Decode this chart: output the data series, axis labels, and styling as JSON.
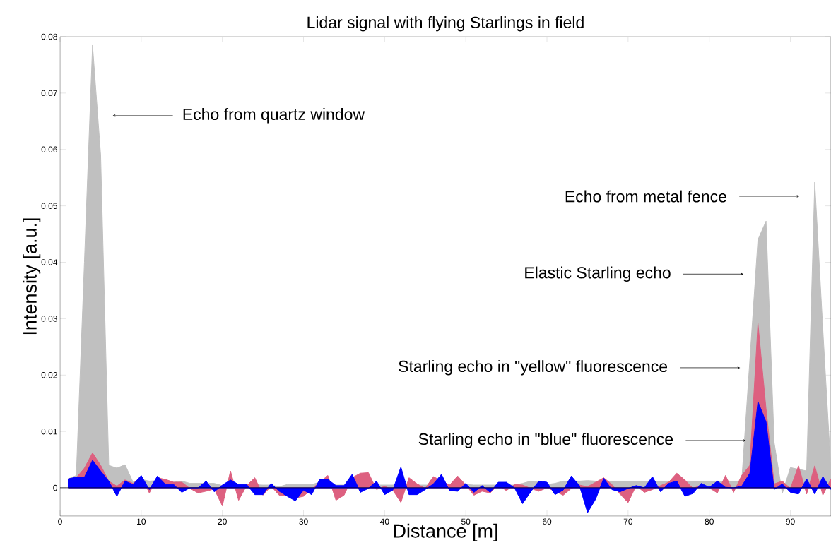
{
  "chart_data": {
    "type": "area",
    "title": "Lidar signal with flying Starlings in field",
    "xlabel": "Distance [m]",
    "ylabel": "Intensity [a.u.]",
    "x": [
      1,
      2,
      3,
      4,
      5,
      6,
      7,
      8,
      9,
      10,
      11,
      12,
      13,
      14,
      15,
      16,
      17,
      18,
      19,
      20,
      21,
      22,
      23,
      24,
      25,
      26,
      27,
      28,
      29,
      30,
      31,
      32,
      33,
      34,
      35,
      36,
      37,
      38,
      39,
      40,
      41,
      42,
      43,
      44,
      45,
      46,
      47,
      48,
      49,
      50,
      51,
      52,
      53,
      54,
      55,
      56,
      57,
      58,
      59,
      60,
      61,
      62,
      63,
      64,
      65,
      66,
      67,
      68,
      69,
      70,
      71,
      72,
      73,
      74,
      75,
      76,
      77,
      78,
      79,
      80,
      81,
      82,
      83,
      84,
      85,
      86,
      87,
      88,
      89,
      90,
      91,
      92,
      93,
      94,
      95
    ],
    "series": [
      {
        "color": "#c0c0c0",
        "values": [
          0.0016,
          0.0022,
          0.04,
          0.0785,
          0.059,
          0.004,
          0.0035,
          0.0041,
          0.001,
          0.0015,
          0.0012,
          0.0013,
          0.0012,
          0.001,
          0.0012,
          0.0008,
          0.0008,
          0.0008,
          0.0008,
          0.0004,
          null,
          0.0006,
          0.0006,
          null,
          0.0005,
          0.0005,
          0.0002,
          0.0006,
          0.0006,
          0.0006,
          0.0006,
          0.001,
          null,
          0.0005,
          0.0005,
          null,
          null,
          null,
          0.0005,
          0.0005,
          0.0005,
          null,
          0.0005,
          0.0005,
          0.0005,
          null,
          null,
          0.0005,
          null,
          0.0006,
          0.0005,
          0.0005,
          0.0005,
          0.0005,
          0.0005,
          0.0005,
          0.0008,
          0.0012,
          0.001,
          0.0006,
          0.0008,
          0.0012,
          null,
          0.0012,
          0.0013,
          0.0012,
          null,
          0.0012,
          0.0012,
          0.0012,
          0.0012,
          0.0012,
          0.0012,
          0.0012,
          0.0012,
          null,
          0.0012,
          0.0012,
          0.0012,
          0.0012,
          0.0012,
          0.0012,
          0.0012,
          0.0012,
          null,
          0.044,
          0.0473,
          0.008,
          -0.001,
          0.0036,
          null,
          0.003,
          0.0542,
          0.028,
          0.003
        ]
      },
      {
        "color": "#dd6080",
        "values": [
          0.0016,
          0.0018,
          0.0035,
          0.0062,
          0.004,
          0.0012,
          0.0003,
          0.0014,
          0.0008,
          0.002,
          -0.0009,
          0.0018,
          0.0015,
          0.001,
          0.001,
          -0.0001,
          -0.0009,
          -0.0006,
          -0.0002,
          -0.0032,
          0.003,
          -0.0022,
          0.0004,
          0.0018,
          -0.0013,
          0.0003,
          -0.0013,
          -0.0013,
          -0.0018,
          -0.0015,
          -0.0002,
          0.001,
          0.0022,
          -0.0022,
          -0.0013,
          0.0018,
          0.0026,
          0.0027,
          -0.0003,
          0.0003,
          -0.0004,
          -0.0026,
          0.0018,
          0.0007,
          -0.0001,
          0.002,
          null,
          0.0005,
          0.0021,
          0.0005,
          -0.0013,
          -0.0006,
          -0.0009,
          0.0005,
          -0.0005,
          0.0006,
          0.0005,
          -0.0001,
          -0.0006,
          0,
          -0.0006,
          -0.0013,
          -0.0001,
          0.0005,
          0.0002,
          null,
          0.0018,
          0.0006,
          -0.0011,
          -0.0026,
          0.0004,
          -0.0008,
          -0.0003,
          0.0004,
          0.001,
          0.0026,
          0.0014,
          -0.0001,
          0.0005,
          0,
          -0.0009,
          0.0022,
          -0.0008,
          0.0022,
          0.004,
          0.0292,
          0.014,
          0.0007,
          0.0012,
          -0.0001,
          0.0039,
          -0.0011,
          0.0039,
          -0.0013,
          0.0016
        ]
      },
      {
        "color": "#0000ff",
        "values": [
          0.0016,
          0.0019,
          0.0019,
          0.0049,
          0.003,
          0.0012,
          -0.0015,
          0.0012,
          0.0006,
          0.0022,
          -0.0003,
          0.0021,
          0.0006,
          0.0006,
          -0.0008,
          0,
          0,
          0.0012,
          -0.0007,
          0.0005,
          0.0014,
          0.0006,
          0.0006,
          -0.0012,
          -0.0012,
          0.0008,
          -0.0006,
          -0.0015,
          -0.0023,
          -0.0004,
          -0.0012,
          0.0015,
          0.0015,
          0.0004,
          0.0004,
          0.0024,
          -0.0008,
          -0.0001,
          0.0012,
          -0.0012,
          -0.0004,
          0.0037,
          -0.0012,
          -0.0012,
          -0.0003,
          0.0007,
          0.0024,
          -0.0005,
          -0.0006,
          0.0008,
          -0.0008,
          0.0004,
          -0.0008,
          0.001,
          0.001,
          0,
          -0.0028,
          -0.0007,
          0.0012,
          0.001,
          -0.0012,
          -0.0004,
          0.0021,
          0.0004,
          -0.0044,
          -0.002,
          0.0017,
          -0.0003,
          -0.0007,
          -0.0001,
          0.0004,
          0,
          0.002,
          -0.0007,
          0.0008,
          0.0012,
          -0.0015,
          -0.001,
          0.0008,
          0.0001,
          0.0012,
          0.0001,
          0,
          0.0003,
          0.0026,
          0.0153,
          0.0117,
          -0.0003,
          0.0007,
          -0.0008,
          -0.0011,
          0.0016,
          -0.0011,
          0.002,
          -0.0003
        ]
      }
    ],
    "xlim": [
      0,
      95
    ],
    "ylim": [
      -0.005,
      0.08
    ],
    "xticks": [
      0,
      10,
      20,
      30,
      40,
      50,
      60,
      70,
      80,
      90
    ],
    "yticks": [
      0,
      0.01,
      0.02,
      0.03,
      0.04,
      0.05,
      0.06,
      0.07,
      0.08
    ],
    "ref_lines": [
      {
        "axis": "y",
        "value": 0,
        "color": "#000000"
      }
    ],
    "annotations": [
      {
        "text": "Echo from quartz window",
        "x": 6.5,
        "y": 0.066
      },
      {
        "text": "Echo from metal fence",
        "x": 91.1,
        "y": 0.0517
      },
      {
        "text": "Elastic Starling echo",
        "x": 84.2,
        "y": 0.0379
      },
      {
        "text": "Starling echo in \"yellow\" fluorescence",
        "x": 83.8,
        "y": 0.0213
      },
      {
        "text": "Starling echo in \"blue\" fluorescence",
        "x": 84.5,
        "y": 0.0084
      }
    ],
    "grid": false
  }
}
